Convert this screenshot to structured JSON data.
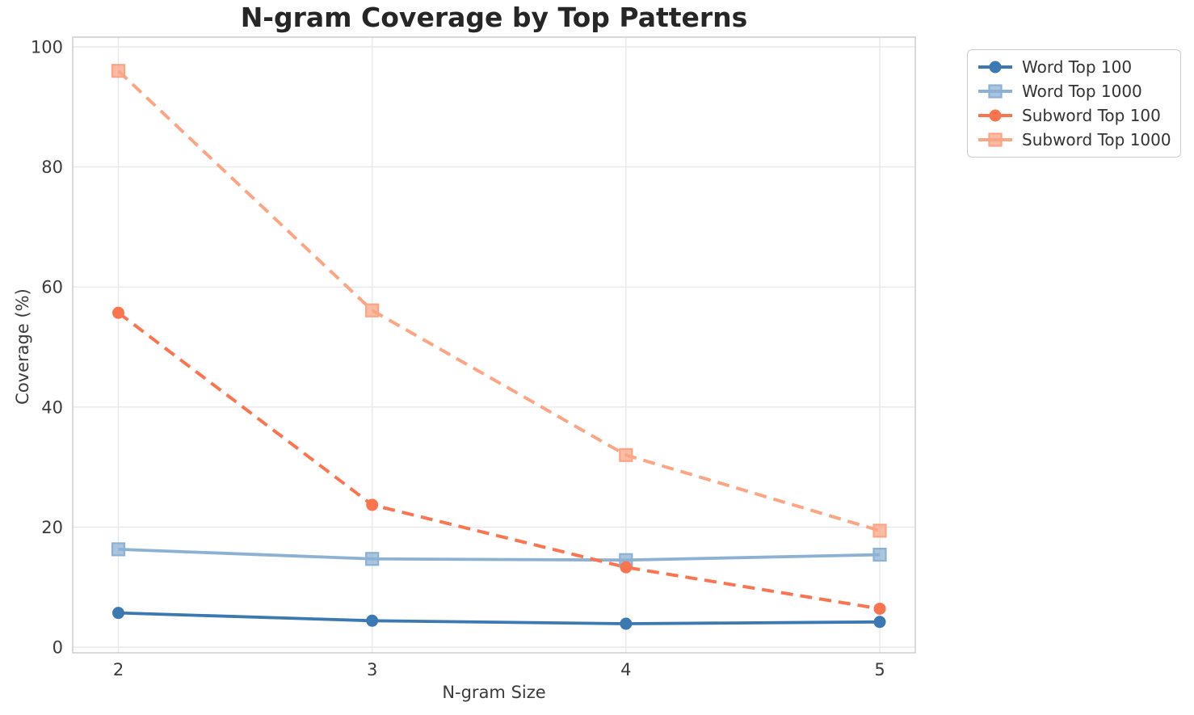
{
  "title": "N-gram Coverage by Top Patterns",
  "axes": {
    "xlabel": "N-gram Size",
    "ylabel": "Coverage (%)"
  },
  "colors": {
    "word_top_100": "#3c79b3",
    "word_top_1000": "#8db1d3",
    "subword_top_100": "#fb7450",
    "subword_top_1000": "#fba585",
    "gridline": "#e8e8e8",
    "spine": "#d0d0d0",
    "tick_text": "#3b3b3b",
    "title_text": "#262626",
    "legend_border": "#cccccc",
    "legend_text": "#333333"
  },
  "chart_data": {
    "type": "line",
    "title": "N-gram Coverage by Top Patterns",
    "xlabel": "N-gram Size",
    "ylabel": "Coverage (%)",
    "x": [
      2,
      3,
      4,
      5
    ],
    "xticks": [
      "2",
      "3",
      "4",
      "5"
    ],
    "yticks": [
      "0",
      "20",
      "40",
      "60",
      "80",
      "100"
    ],
    "ytick_values": [
      0,
      20,
      40,
      60,
      80,
      100
    ],
    "xlim": [
      1.82,
      5.14
    ],
    "ylim": [
      0,
      100
    ],
    "grid": true,
    "legend_position": "outside upper right",
    "series": [
      {
        "name": "Word Top 100",
        "values": [
          5.7,
          4.4,
          3.9,
          4.2
        ],
        "color": "#3c79b3",
        "marker": "circle",
        "dash": "solid"
      },
      {
        "name": "Word Top 1000",
        "values": [
          16.3,
          14.7,
          14.5,
          15.4
        ],
        "color": "#8db1d3",
        "marker": "square",
        "dash": "solid"
      },
      {
        "name": "Subword Top 100",
        "values": [
          55.7,
          23.7,
          13.3,
          6.4
        ],
        "color": "#fb7450",
        "marker": "circle",
        "dash": "dashed"
      },
      {
        "name": "Subword Top 1000",
        "values": [
          96.0,
          56.1,
          32.0,
          19.4
        ],
        "color": "#fba585",
        "marker": "square",
        "dash": "dashed"
      }
    ]
  }
}
